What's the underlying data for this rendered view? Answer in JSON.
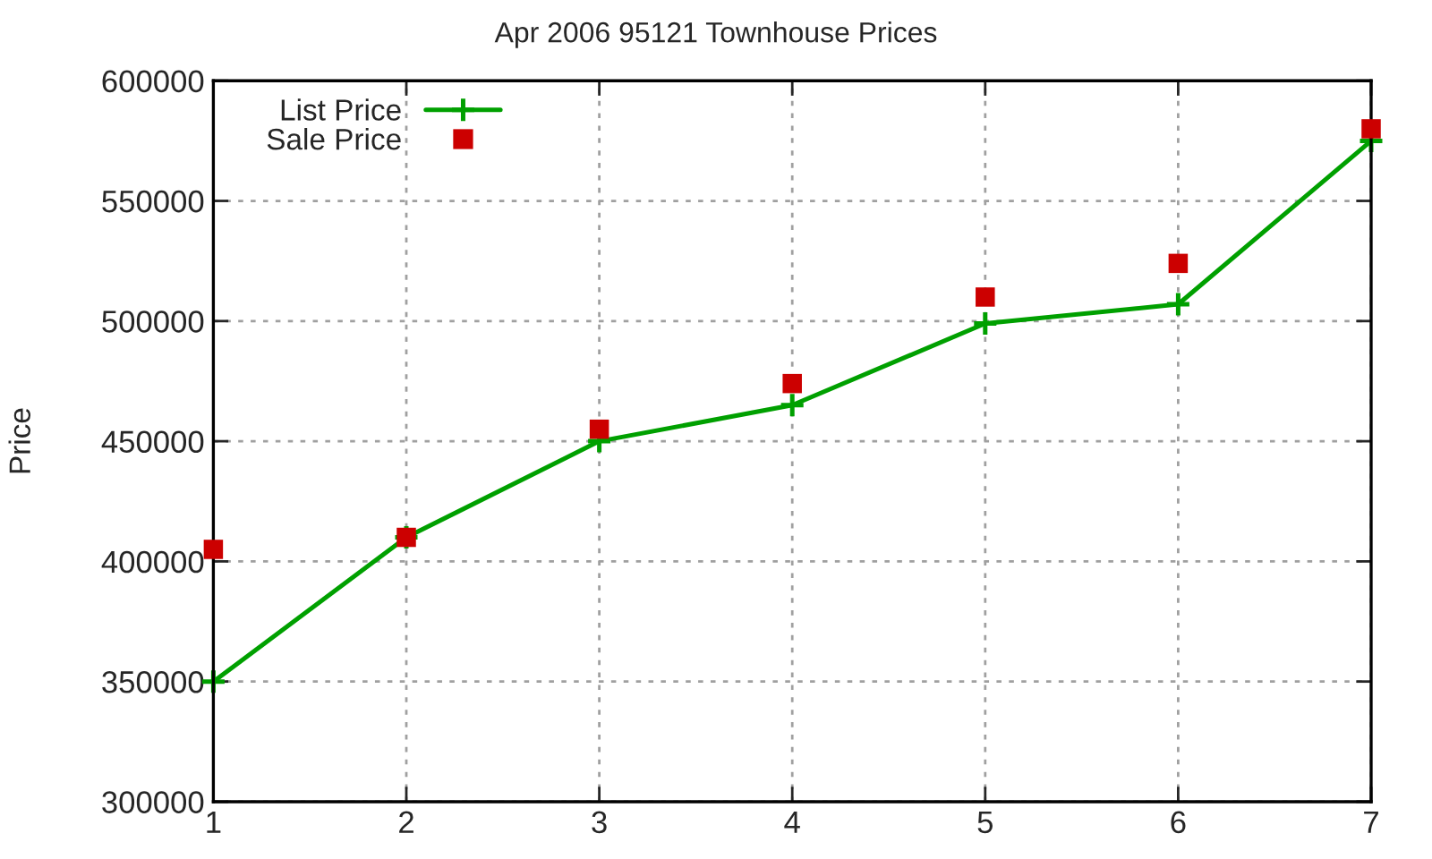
{
  "chart_data": {
    "type": "line",
    "title": "Apr 2006 95121 Townhouse Prices",
    "ylabel": "Price",
    "x": [
      1,
      2,
      3,
      4,
      5,
      6,
      7
    ],
    "series": [
      {
        "name": "List Price",
        "marker": "cross",
        "line_style": "solid",
        "color": "#00a000",
        "values": [
          350000,
          410000,
          450000,
          465000,
          499000,
          507000,
          575000
        ]
      },
      {
        "name": "Sale Price",
        "type": "scatter",
        "marker": "square",
        "color": "#cc0000",
        "values": [
          405000,
          410000,
          455000,
          474000,
          510000,
          524000,
          580000
        ]
      }
    ],
    "xlim": [
      1,
      7
    ],
    "xticks": [
      1,
      2,
      3,
      4,
      5,
      6,
      7
    ],
    "ylim": [
      300000,
      600000
    ],
    "yticks": [
      300000,
      350000,
      400000,
      450000,
      500000,
      550000,
      600000
    ],
    "grid": true,
    "legend": "top left"
  }
}
